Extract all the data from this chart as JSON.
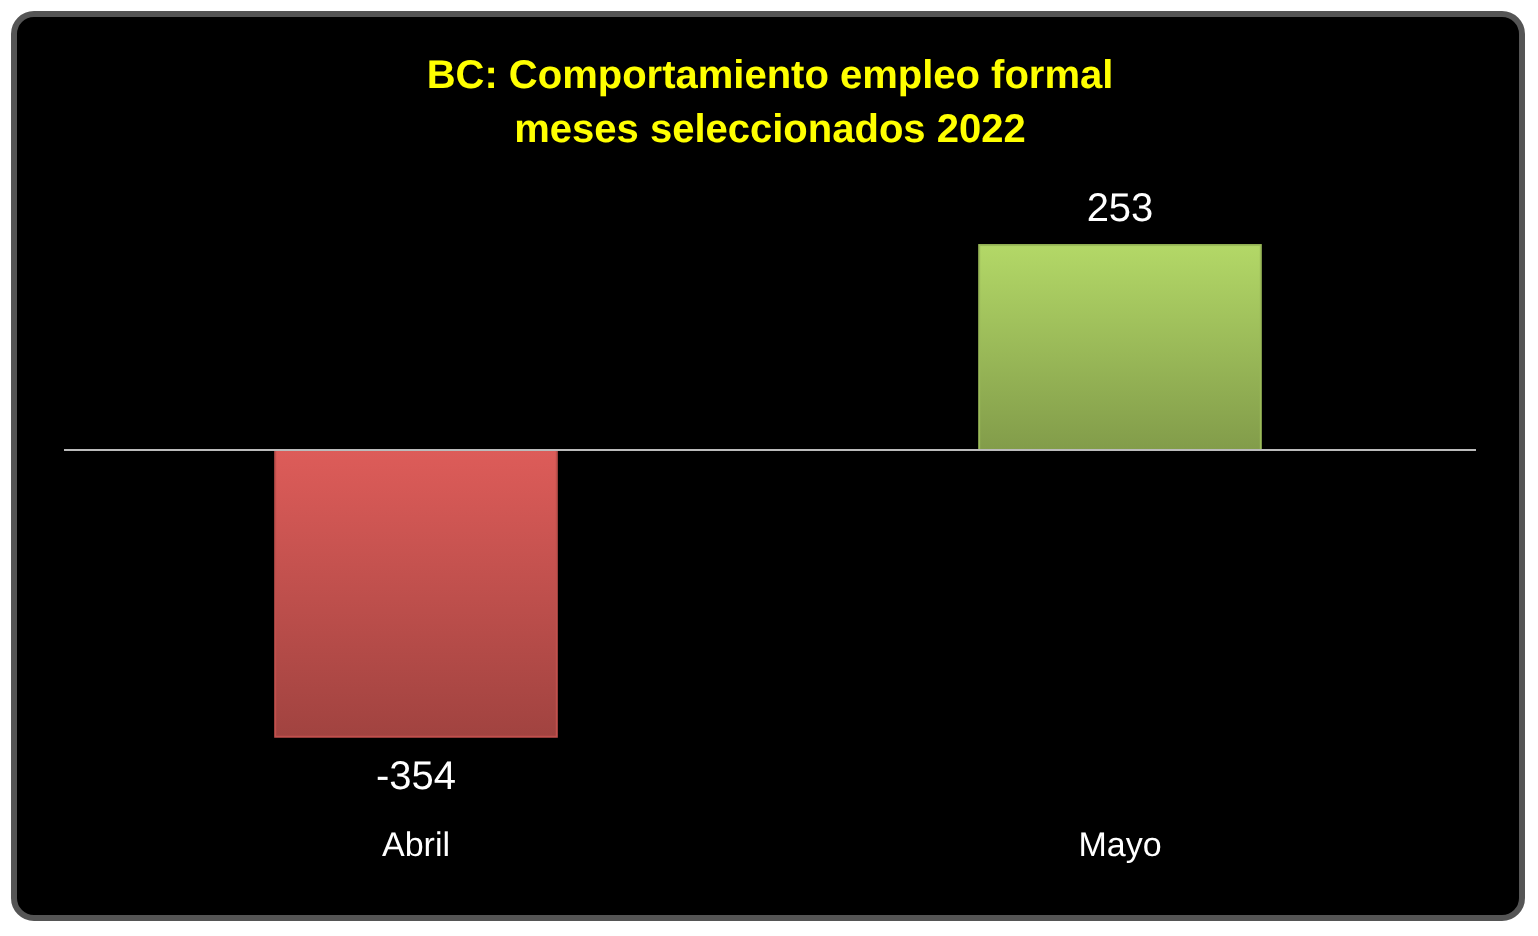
{
  "chart_data": {
    "type": "bar",
    "title": "BC: Comportamiento empleo formal\nmeses seleccionados 2022",
    "categories": [
      "Abril",
      "Mayo"
    ],
    "values": [
      -354,
      253
    ],
    "colors": [
      "#c0504d",
      "#9bbb59"
    ],
    "relative": false,
    "data_labels": true
  }
}
